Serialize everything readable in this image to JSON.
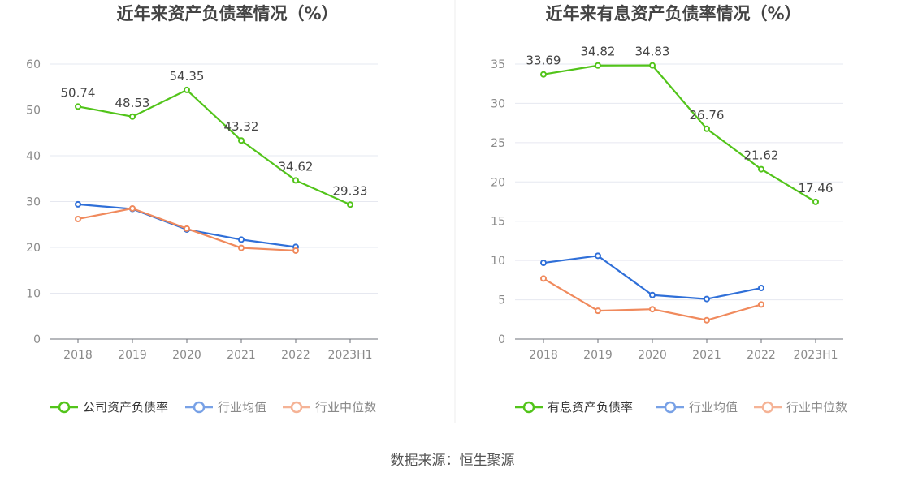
{
  "source": "数据来源：恒生聚源",
  "chart_data": [
    {
      "type": "line",
      "title": "近年来资产负债率情况（%）",
      "categories": [
        "2018",
        "2019",
        "2020",
        "2021",
        "2022",
        "2023H1"
      ],
      "ylim": [
        0,
        60
      ],
      "yticks": [
        0,
        10,
        20,
        30,
        40,
        50,
        60
      ],
      "grid": true,
      "legend_position": "bottom",
      "series": [
        {
          "name": "公司资产负债率",
          "color": "#52c41a",
          "labels": true,
          "emphasis": true,
          "values": [
            50.74,
            48.53,
            54.35,
            43.32,
            34.62,
            29.33
          ]
        },
        {
          "name": "行业均值",
          "color": "#2f6fd8",
          "labels": false,
          "values": [
            29.4,
            28.4,
            23.9,
            21.7,
            20.1,
            null
          ]
        },
        {
          "name": "行业中位数",
          "color": "#f08a5d",
          "labels": false,
          "values": [
            26.2,
            28.5,
            24.1,
            19.9,
            19.3,
            null
          ]
        }
      ]
    },
    {
      "type": "line",
      "title": "近年来有息资产负债率情况（%）",
      "categories": [
        "2018",
        "2019",
        "2020",
        "2021",
        "2022",
        "2023H1"
      ],
      "ylim": [
        0,
        35
      ],
      "yticks": [
        0,
        5,
        10,
        15,
        20,
        25,
        30,
        35
      ],
      "grid": true,
      "legend_position": "bottom",
      "series": [
        {
          "name": "有息资产负债率",
          "color": "#52c41a",
          "labels": true,
          "emphasis": true,
          "values": [
            33.69,
            34.82,
            34.83,
            26.76,
            21.62,
            17.46
          ]
        },
        {
          "name": "行业均值",
          "color": "#2f6fd8",
          "labels": false,
          "values": [
            9.7,
            10.6,
            5.6,
            5.1,
            6.5,
            null
          ]
        },
        {
          "name": "行业中位数",
          "color": "#f08a5d",
          "labels": false,
          "values": [
            7.7,
            3.6,
            3.8,
            2.4,
            4.4,
            null
          ]
        }
      ]
    }
  ]
}
